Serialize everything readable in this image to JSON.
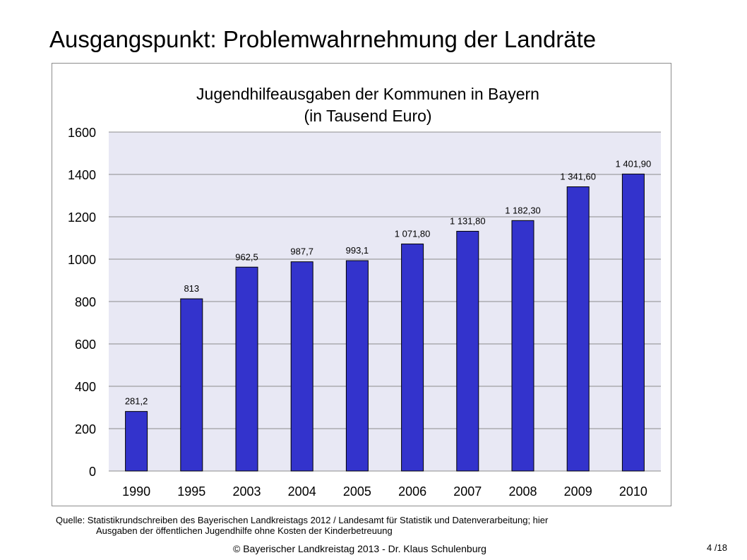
{
  "slide": {
    "title": "Ausgangspunkt: Problemwahrnehmung der Landräte",
    "source_line1": "Quelle: Statistikrundschreiben des Bayerischen Landkreistags 2012 / Landesamt für Statistik und Datenverarbeitung; hier",
    "source_line2": "Ausgaben der öffentlichen Jugendhilfe ohne Kosten der Kinderbetreuung",
    "footer": "© Bayerischer Landkreistag 2013 - Dr. Klaus Schulenburg",
    "page_number": "4",
    "page_total": "/18"
  },
  "colors": {
    "bar": "#3333cc",
    "bar_border": "#000000",
    "plot_background": "#e8e8f4",
    "gridline": "#8c8c8c"
  },
  "chart_data": {
    "type": "bar",
    "title": "Jugendhilfeausgaben der Kommunen in Bayern",
    "subtitle": "(in Tausend Euro)",
    "xlabel": "",
    "ylabel": "",
    "ylim": [
      0,
      1600
    ],
    "yticks": [
      "0",
      "200",
      "400",
      "600",
      "800",
      "1000",
      "1200",
      "1400",
      "1600"
    ],
    "grid": true,
    "legend": "none",
    "categories": [
      "1990",
      "1995",
      "2003",
      "2004",
      "2005",
      "2006",
      "2007",
      "2008",
      "2009",
      "2010"
    ],
    "values": [
      281.2,
      813,
      962.5,
      987.7,
      993.1,
      1071.8,
      1131.8,
      1182.3,
      1341.6,
      1401.9
    ],
    "data_labels": [
      "281,2",
      "813",
      "962,5",
      "987,7",
      "993,1",
      "1 071,80",
      "1 131,80",
      "1 182,30",
      "1 341,60",
      "1 401,90"
    ]
  }
}
